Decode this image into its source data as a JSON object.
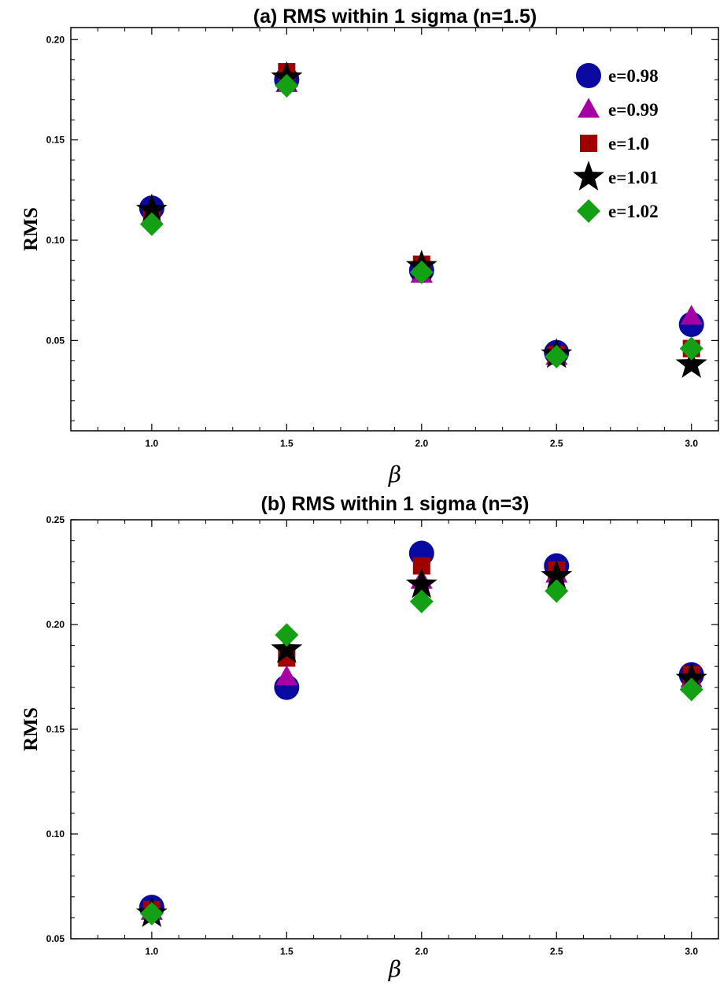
{
  "chart_data": [
    {
      "type": "scatter",
      "title": "(a) RMS within 1 sigma (n=1.5)",
      "xlabel": "β",
      "ylabel": "RMS",
      "xlim": [
        0.7,
        3.1
      ],
      "ylim": [
        0.005,
        0.206
      ],
      "x_ticks": [
        1.0,
        1.5,
        2.0,
        2.5,
        3.0
      ],
      "x_tick_labels": [
        "1.0",
        "1.5",
        "2.0",
        "2.5",
        "3.0"
      ],
      "y_ticks": [
        0.05,
        0.1,
        0.15,
        0.2
      ],
      "y_tick_labels": [
        "0.05",
        "0.10",
        "0.15",
        "0.20"
      ],
      "grid": false,
      "legend": {
        "show": true,
        "position": "top-right"
      },
      "series": [
        {
          "name": "e=0.98",
          "marker": "circle",
          "color": "#0a0aa0",
          "x": [
            1.0,
            1.5,
            2.0,
            2.5,
            3.0
          ],
          "y": [
            0.116,
            0.18,
            0.085,
            0.044,
            0.058
          ]
        },
        {
          "name": "e=0.99",
          "marker": "triangle",
          "color": "#a400a4",
          "x": [
            1.0,
            1.5,
            2.0,
            2.5,
            3.0
          ],
          "y": [
            0.112,
            0.178,
            0.083,
            0.042,
            0.062
          ]
        },
        {
          "name": "e=1.0",
          "marker": "square",
          "color": "#a00000",
          "x": [
            1.0,
            1.5,
            2.0,
            2.5,
            3.0
          ],
          "y": [
            0.113,
            0.184,
            0.088,
            0.043,
            0.046
          ]
        },
        {
          "name": "e=1.01",
          "marker": "star",
          "color": "#000000",
          "x": [
            1.0,
            1.5,
            2.0,
            2.5,
            3.0
          ],
          "y": [
            0.115,
            0.181,
            0.087,
            0.043,
            0.038
          ]
        },
        {
          "name": "e=1.02",
          "marker": "diamond",
          "color": "#14a014",
          "x": [
            1.0,
            1.5,
            2.0,
            2.5,
            3.0
          ],
          "y": [
            0.108,
            0.177,
            0.084,
            0.042,
            0.046
          ]
        }
      ]
    },
    {
      "type": "scatter",
      "title": "(b) RMS within 1 sigma (n=3)",
      "xlabel": "β",
      "ylabel": "RMS",
      "xlim": [
        0.7,
        3.1
      ],
      "ylim": [
        0.05,
        0.25
      ],
      "x_ticks": [
        1.0,
        1.5,
        2.0,
        2.5,
        3.0
      ],
      "x_tick_labels": [
        "1.0",
        "1.5",
        "2.0",
        "2.5",
        "3.0"
      ],
      "y_ticks": [
        0.05,
        0.1,
        0.15,
        0.2,
        0.25
      ],
      "y_tick_labels": [
        "0.05",
        "0.10",
        "0.15",
        "0.20",
        "0.25"
      ],
      "grid": false,
      "legend": {
        "show": false
      },
      "series": [
        {
          "name": "e=0.98",
          "marker": "circle",
          "color": "#0a0aa0",
          "x": [
            1.0,
            1.5,
            2.0,
            2.5,
            3.0
          ],
          "y": [
            0.065,
            0.17,
            0.234,
            0.228,
            0.176
          ]
        },
        {
          "name": "e=0.99",
          "marker": "triangle",
          "color": "#a400a4",
          "x": [
            1.0,
            1.5,
            2.0,
            2.5,
            3.0
          ],
          "y": [
            0.063,
            0.175,
            0.221,
            0.224,
            0.174
          ]
        },
        {
          "name": "e=1.0",
          "marker": "square",
          "color": "#a00000",
          "x": [
            1.0,
            1.5,
            2.0,
            2.5,
            3.0
          ],
          "y": [
            0.064,
            0.184,
            0.228,
            0.226,
            0.176
          ]
        },
        {
          "name": "e=1.01",
          "marker": "star",
          "color": "#000000",
          "x": [
            1.0,
            1.5,
            2.0,
            2.5,
            3.0
          ],
          "y": [
            0.062,
            0.188,
            0.219,
            0.223,
            0.174
          ]
        },
        {
          "name": "e=1.02",
          "marker": "diamond",
          "color": "#14a014",
          "x": [
            1.0,
            1.5,
            2.0,
            2.5,
            3.0
          ],
          "y": [
            0.062,
            0.195,
            0.211,
            0.216,
            0.169
          ]
        }
      ]
    }
  ]
}
